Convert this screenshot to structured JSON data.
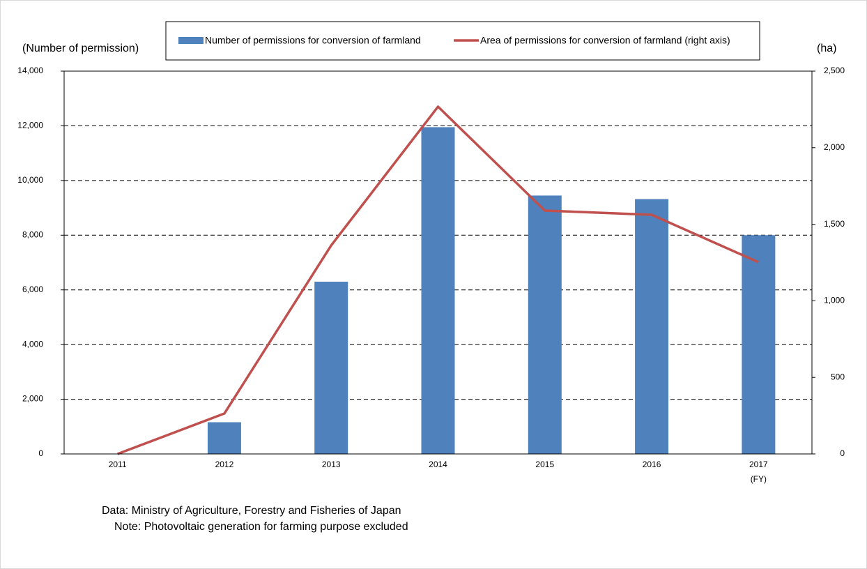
{
  "chart_data": {
    "type": "bar-line",
    "y_label": "(Number of permission)",
    "y2_label": "(ha)",
    "categories": [
      "2011",
      "2012",
      "2013",
      "2014",
      "2015",
      "2016",
      "2017"
    ],
    "x_annotation": "(FY)",
    "series": [
      {
        "name": "Number of permissions for conversion of farmland",
        "type": "bar",
        "color": "#4f81bd",
        "values": [
          5,
          1160,
          6300,
          11950,
          9450,
          9320,
          8000
        ]
      },
      {
        "name": "Area of permissions for conversion of farmland (right axis)",
        "type": "line",
        "axis": "y2",
        "color": "#c0504d",
        "values": [
          0,
          264,
          1362,
          2268,
          1589,
          1562,
          1252
        ]
      }
    ],
    "ylim": [
      0,
      14000
    ],
    "yticks": [
      0,
      {
        "value": 2000,
        "label": "2,000"
      },
      {
        "value": 4000,
        "label": "4,000"
      },
      {
        "value": 6000,
        "label": "6,000"
      },
      {
        "value": 8000,
        "label": "8,000"
      },
      {
        "value": 10000,
        "label": "10,000"
      },
      {
        "value": 12000,
        "label": "12,000"
      },
      {
        "value": 14000,
        "label": "14,000"
      }
    ],
    "y2lim": [
      0,
      2500
    ],
    "y2ticks": [
      0,
      500,
      {
        "value": 1000,
        "label": "1,000"
      },
      {
        "value": 1500,
        "label": "1,500"
      },
      {
        "value": 2000,
        "label": "2,000"
      },
      {
        "value": 2500,
        "label": "2,500"
      }
    ],
    "grid": true,
    "notes": [
      "Data: Ministry of Agriculture, Forestry and Fisheries of Japan",
      "Note: Photovoltaic generation for farming purpose excluded"
    ]
  }
}
